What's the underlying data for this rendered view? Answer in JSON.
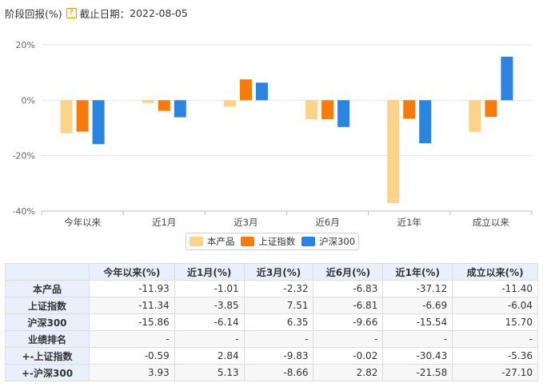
{
  "header": {
    "title": "阶段回报(%)",
    "help_icon": "?",
    "date_label": "截止日期：",
    "date_value": "2022-08-05"
  },
  "colors": {
    "product": "#fdd28b",
    "sse": "#f97b0b",
    "csi300": "#2b84e0"
  },
  "chart_data": {
    "type": "bar",
    "categories": [
      "今年以来",
      "近1月",
      "近3月",
      "近6月",
      "近1年",
      "成立以来"
    ],
    "series": [
      {
        "name": "本产品",
        "values": [
          -11.93,
          -1.01,
          -2.32,
          -6.83,
          -37.12,
          -11.4
        ]
      },
      {
        "name": "上证指数",
        "values": [
          -11.34,
          -3.85,
          7.51,
          -6.81,
          -6.69,
          -6.04
        ]
      },
      {
        "name": "沪深300",
        "values": [
          -15.86,
          -6.14,
          6.35,
          -9.66,
          -15.54,
          15.7
        ]
      }
    ],
    "ylim": [
      -40,
      20
    ],
    "yticks": [
      20,
      0,
      -20,
      -40
    ],
    "ytick_labels": [
      "20%",
      "0%",
      "-20%",
      "-40%"
    ],
    "grid": true,
    "legend": "bottom"
  },
  "table": {
    "headers": [
      "今年以来(%)",
      "近1月(%)",
      "近3月(%)",
      "近6月(%)",
      "近1年(%)",
      "成立以来(%)"
    ],
    "rows": [
      {
        "label": "本产品",
        "cells": [
          "-11.93",
          "-1.01",
          "-2.32",
          "-6.83",
          "-37.12",
          "-11.40"
        ]
      },
      {
        "label": "上证指数",
        "cells": [
          "-11.34",
          "-3.85",
          "7.51",
          "-6.81",
          "-6.69",
          "-6.04"
        ]
      },
      {
        "label": "沪深300",
        "cells": [
          "-15.86",
          "-6.14",
          "6.35",
          "-9.66",
          "-15.54",
          "15.70"
        ]
      },
      {
        "label": "业绩排名",
        "cells": [
          "-",
          "-",
          "-",
          "-",
          "-",
          "-"
        ]
      },
      {
        "label": "+-上证指数",
        "cells": [
          "-0.59",
          "2.84",
          "-9.83",
          "-0.02",
          "-30.43",
          "-5.36"
        ]
      },
      {
        "label": "+-沪深300",
        "cells": [
          "3.93",
          "5.13",
          "-8.66",
          "2.82",
          "-21.58",
          "-27.10"
        ]
      }
    ]
  }
}
